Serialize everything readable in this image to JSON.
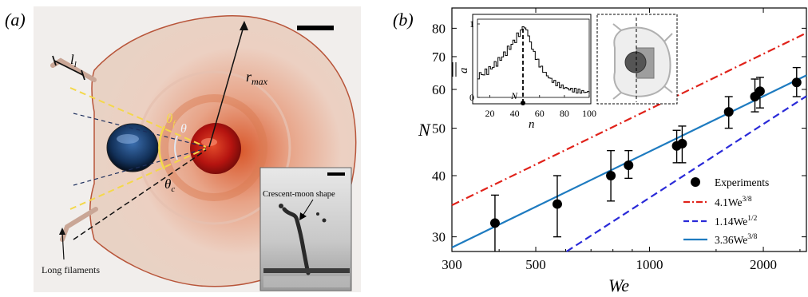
{
  "panel_a": {
    "label": "(a)",
    "annotations": {
      "l_l": "l",
      "l_l_sub": "l",
      "r_max": "r",
      "r_max_sub": "max",
      "theta_f": "θ",
      "theta_f_sub": "f",
      "theta": "θ",
      "theta_c": "θ",
      "theta_c_sub": "c",
      "long_filaments": "Long filaments",
      "crescent": "Crescent-moon shape"
    }
  },
  "panel_b": {
    "label": "(b)",
    "inset": {
      "ylabel_base": "a",
      "xlabel": "n",
      "N_marker": "N",
      "yticks": [
        "1",
        "0"
      ],
      "xticks": [
        "20",
        "40",
        "60",
        "80",
        "100"
      ]
    }
  },
  "chart_data": {
    "type": "scatter",
    "xlabel": "We",
    "ylabel": "N",
    "xscale": "log",
    "yscale": "log",
    "xlim": [
      300,
      2600
    ],
    "ylim": [
      28,
      88
    ],
    "xticks": [
      300,
      500,
      1000,
      2000
    ],
    "yticks": [
      30,
      40,
      50,
      60,
      70,
      80
    ],
    "legend_position": "bottom-right",
    "series": [
      {
        "name": "Experiments",
        "kind": "points",
        "color": "#000000",
        "points": [
          {
            "x": 390,
            "y": 32,
            "err": [
              27.5,
              36.5
            ]
          },
          {
            "x": 570,
            "y": 35,
            "err": [
              30,
              40
            ]
          },
          {
            "x": 790,
            "y": 40,
            "err": [
              35.5,
              45
            ]
          },
          {
            "x": 880,
            "y": 42,
            "err": [
              39.5,
              45
            ]
          },
          {
            "x": 1180,
            "y": 46,
            "err": [
              42.5,
              49.5
            ]
          },
          {
            "x": 1220,
            "y": 46.5,
            "err": [
              42.5,
              50.5
            ]
          },
          {
            "x": 1620,
            "y": 54,
            "err": [
              50,
              58
            ]
          },
          {
            "x": 1900,
            "y": 58,
            "err": [
              54,
              63
            ]
          },
          {
            "x": 1960,
            "y": 59.5,
            "err": [
              55,
              63.5
            ]
          },
          {
            "x": 2450,
            "y": 62,
            "err": [
              58,
              66.5
            ]
          }
        ]
      },
      {
        "name_base": "4.1We",
        "exponent": "3/8",
        "coef": 4.1,
        "power": 0.375,
        "kind": "line",
        "dash": "dashdot",
        "color": "#e0221a"
      },
      {
        "name_base": "1.14We",
        "exponent": "1/2",
        "coef": 1.14,
        "power": 0.5,
        "kind": "line",
        "dash": "dash",
        "color": "#2a2ad8"
      },
      {
        "name_base": "3.36We",
        "exponent": "3/8",
        "coef": 3.36,
        "power": 0.375,
        "kind": "line",
        "dash": "solid",
        "color": "#1e7bc0"
      }
    ]
  }
}
